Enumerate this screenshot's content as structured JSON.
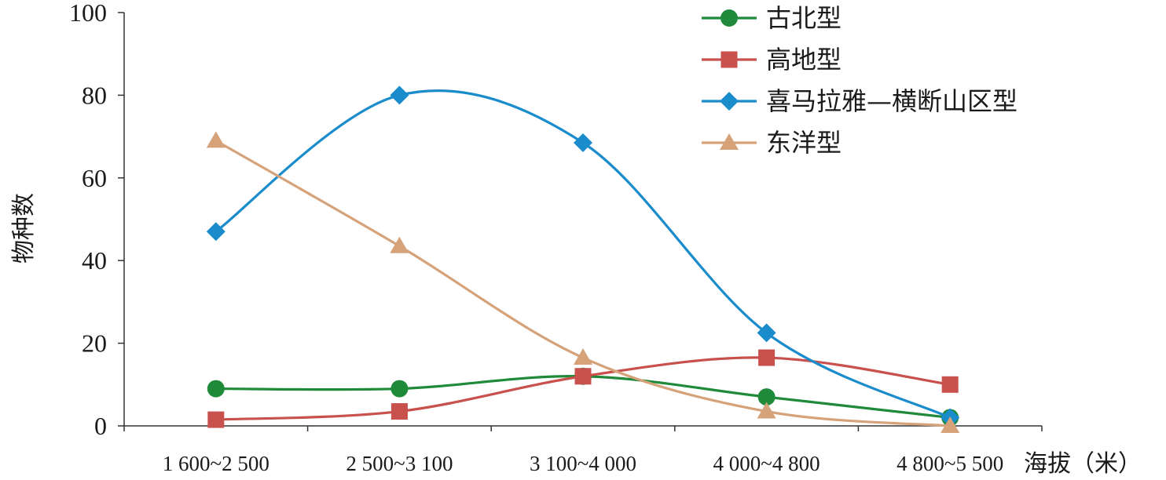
{
  "chart_data": {
    "type": "line",
    "smooth": true,
    "title": "",
    "xlabel": "海拔（米）",
    "ylabel": "物种数",
    "categories": [
      "1 600~2 500",
      "2 500~3 100",
      "3 100~4 000",
      "4 000~4 800",
      "4 800~5 500"
    ],
    "ylim": [
      0,
      100
    ],
    "yticks": [
      0,
      20,
      40,
      60,
      80,
      100
    ],
    "grid": false,
    "legend_position": "top-right",
    "series": [
      {
        "name": "古北型",
        "marker": "circle",
        "color": "#1f8a3a",
        "points": [
          [
            1,
            9
          ],
          [
            2,
            9
          ],
          [
            3,
            12
          ],
          [
            4,
            7
          ],
          [
            5,
            2
          ]
        ]
      },
      {
        "name": "高地型",
        "marker": "square",
        "color": "#c8504d",
        "points": [
          [
            1,
            1.5
          ],
          [
            2,
            3.5
          ],
          [
            3,
            12
          ],
          [
            4,
            16.5
          ],
          [
            5,
            10
          ]
        ]
      },
      {
        "name": "喜马拉雅—横断山区型",
        "marker": "diamond",
        "color": "#1a8ccc",
        "points": [
          [
            1,
            47
          ],
          [
            2,
            80
          ],
          [
            3,
            68.5
          ],
          [
            4,
            22.5
          ],
          [
            5,
            2
          ]
        ]
      },
      {
        "name": "东洋型",
        "marker": "triangle",
        "color": "#d5a27a",
        "points": [
          [
            1,
            69
          ],
          [
            2,
            43.5
          ],
          [
            3,
            16.5
          ],
          [
            4,
            3.5
          ],
          [
            5,
            0
          ]
        ]
      }
    ]
  }
}
